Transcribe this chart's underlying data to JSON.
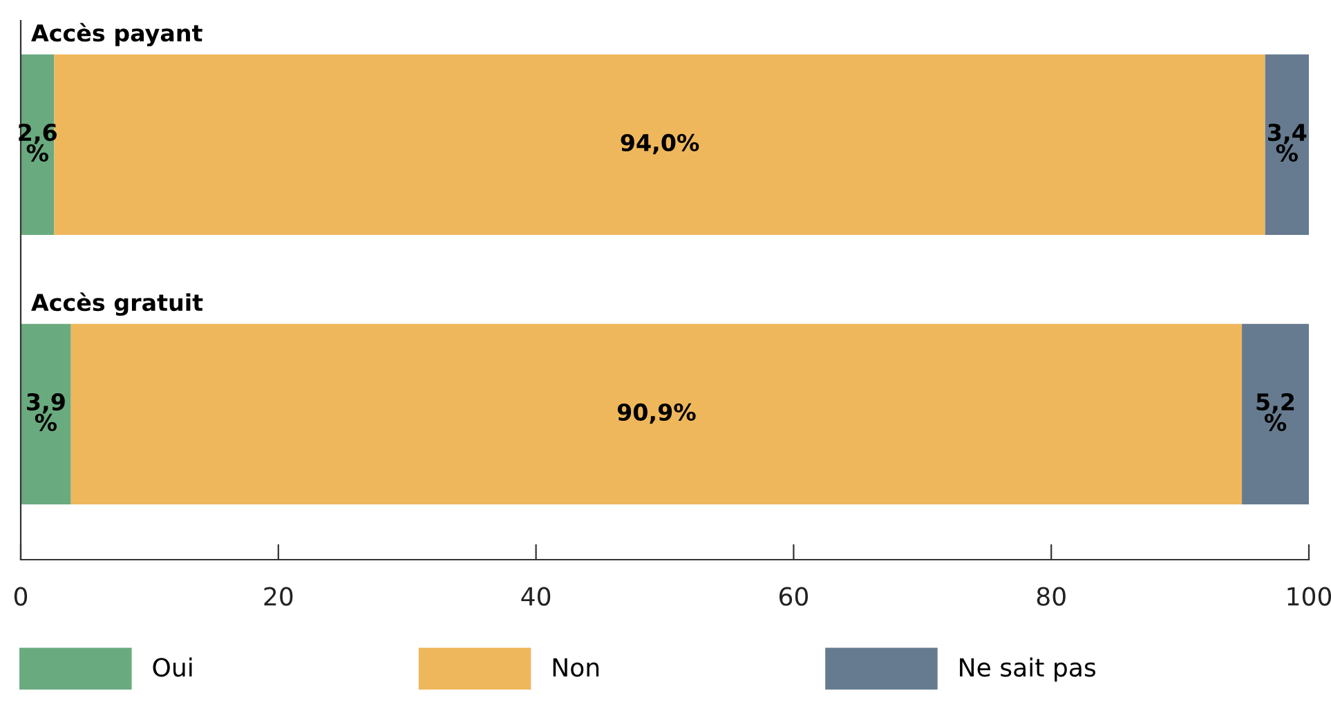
{
  "chart_data": {
    "type": "bar",
    "orientation": "horizontal",
    "stacked": true,
    "categories": [
      "Accès payant",
      "Accès gratuit"
    ],
    "series": [
      {
        "name": "Oui",
        "color": "#6aaa7f",
        "values": [
          2.6,
          3.9
        ],
        "value_labels": [
          "2,6%",
          "3,9%"
        ]
      },
      {
        "name": "Non",
        "color": "#efb75b",
        "values": [
          94.0,
          90.9
        ],
        "value_labels": [
          "94,0%",
          "90,9%"
        ]
      },
      {
        "name": "Ne sait pas",
        "color": "#667b8f",
        "values": [
          3.4,
          5.2
        ],
        "value_labels": [
          "3,4%",
          "5,2%"
        ]
      }
    ],
    "xlim": [
      0,
      100
    ],
    "xticks": [
      0,
      20,
      40,
      60,
      80,
      100
    ],
    "grid": false,
    "legend": "bottom"
  }
}
